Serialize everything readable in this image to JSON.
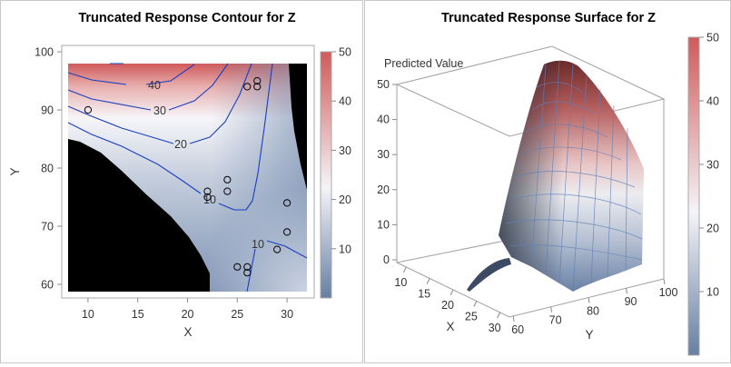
{
  "colors": {
    "low": "#667fa3",
    "mid": "#f4f4f8",
    "high": "#d05a5a",
    "contour_line": "#1a3fbf",
    "truncated": "#000000"
  },
  "chart_data": [
    {
      "type": "contour",
      "title": "Truncated Response Contour for Z",
      "xlabel": "X",
      "ylabel": "Y",
      "xlim": [
        8,
        32
      ],
      "ylim": [
        59,
        98
      ],
      "x_ticks": [
        "10",
        "15",
        "20",
        "25",
        "30"
      ],
      "y_ticks": [
        "60",
        "70",
        "80",
        "90",
        "100"
      ],
      "contour_levels": [
        {
          "level": 40,
          "label": "40"
        },
        {
          "level": 30,
          "label": "30"
        },
        {
          "level": 20,
          "label": "20"
        },
        {
          "level": 10,
          "label": "10"
        },
        {
          "level": 10,
          "label": "10"
        }
      ],
      "observations": [
        {
          "x": 10,
          "y": 90
        },
        {
          "x": 26,
          "y": 94
        },
        {
          "x": 27,
          "y": 95
        },
        {
          "x": 27,
          "y": 94
        },
        {
          "x": 22,
          "y": 76
        },
        {
          "x": 22,
          "y": 75
        },
        {
          "x": 24,
          "y": 78
        },
        {
          "x": 24,
          "y": 76
        },
        {
          "x": 30,
          "y": 74
        },
        {
          "x": 30,
          "y": 69
        },
        {
          "x": 29,
          "y": 66
        },
        {
          "x": 25,
          "y": 63
        },
        {
          "x": 26,
          "y": 63
        },
        {
          "x": 26,
          "y": 62
        }
      ],
      "colorbar": {
        "range": [
          1,
          50
        ],
        "ticks": [
          "10",
          "20",
          "30",
          "40",
          "50"
        ]
      },
      "grid": false
    },
    {
      "type": "surface",
      "title": "Truncated Response Surface for Z",
      "xlabel": "X",
      "ylabel": "Y",
      "zlabel": "Predicted Value",
      "xlim": [
        8,
        32
      ],
      "ylim": [
        59,
        100
      ],
      "zlim": [
        0,
        50
      ],
      "x_ticks": [
        "10",
        "15",
        "20",
        "25",
        "30"
      ],
      "y_ticks": [
        "60",
        "70",
        "80",
        "90",
        "100"
      ],
      "z_ticks": [
        "0",
        "10",
        "20",
        "30",
        "40",
        "50"
      ],
      "colorbar": {
        "range": [
          1,
          50
        ],
        "ticks": [
          "10",
          "20",
          "30",
          "40",
          "50"
        ]
      }
    }
  ]
}
